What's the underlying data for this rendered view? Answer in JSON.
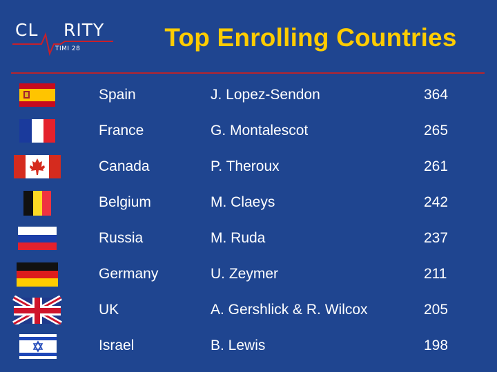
{
  "logo": {
    "brand": "CL-RITY",
    "sub": "TIMI 28"
  },
  "title": "Top Enrolling Countries",
  "rows": [
    {
      "country": "Spain",
      "investigator": "J. Lopez-Sendon",
      "count": "364",
      "flag": "spain-flag"
    },
    {
      "country": "France",
      "investigator": "G. Montalescot",
      "count": "265",
      "flag": "france-flag"
    },
    {
      "country": "Canada",
      "investigator": "P. Theroux",
      "count": "261",
      "flag": "canada-flag"
    },
    {
      "country": "Belgium",
      "investigator": "M. Claeys",
      "count": "242",
      "flag": "belgium-flag"
    },
    {
      "country": "Russia",
      "investigator": "M. Ruda",
      "count": "237",
      "flag": "russia-flag"
    },
    {
      "country": "Germany",
      "investigator": "U. Zeymer",
      "count": "211",
      "flag": "germany-flag"
    },
    {
      "country": "UK",
      "investigator": "A. Gershlick & R. Wilcox",
      "count": "205",
      "flag": "uk-flag"
    },
    {
      "country": "Israel",
      "investigator": "B. Lewis",
      "count": "198",
      "flag": "israel-flag"
    }
  ],
  "colors": {
    "background": "#1f4590",
    "title": "#ffcc00",
    "rule": "#b8242c",
    "text": "#ffffff"
  }
}
